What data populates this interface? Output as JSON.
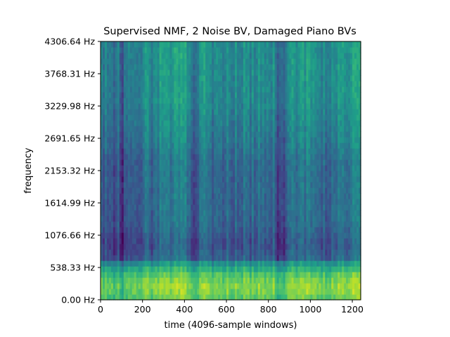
{
  "chart_data": {
    "type": "heatmap",
    "title": "Supervised NMF, 2 Noise BV, Damaged Piano BVs",
    "xlabel": "time (4096-sample windows)",
    "ylabel": "frequency",
    "xlim": [
      0,
      1240
    ],
    "ylim": [
      0,
      4306.64
    ],
    "x_ticks": [
      0,
      200,
      400,
      600,
      800,
      1000,
      1200
    ],
    "x_tick_labels": [
      "0",
      "200",
      "400",
      "600",
      "800",
      "1000",
      "1200"
    ],
    "y_ticks": [
      0,
      538.33,
      1076.66,
      1614.99,
      2153.32,
      2691.65,
      3229.98,
      3768.31,
      4306.64
    ],
    "y_tick_labels": [
      "0.00 Hz",
      "538.33 Hz",
      "1076.66 Hz",
      "1614.99 Hz",
      "2153.32 Hz",
      "2691.65 Hz",
      "3229.98 Hz",
      "3768.31 Hz",
      "4306.64 Hz"
    ],
    "colormap": "viridis",
    "grid": false,
    "value_scale": "relative intensity 0-1",
    "band_profile": [
      {
        "freq": 0,
        "intensity": 0.72
      },
      {
        "freq": 200,
        "intensity": 0.82
      },
      {
        "freq": 400,
        "intensity": 0.74
      },
      {
        "freq": 600,
        "intensity": 0.52
      },
      {
        "freq": 700,
        "intensity": 0.3
      },
      {
        "freq": 900,
        "intensity": 0.24
      },
      {
        "freq": 1300,
        "intensity": 0.32
      },
      {
        "freq": 2300,
        "intensity": 0.34
      },
      {
        "freq": 2700,
        "intensity": 0.4
      },
      {
        "freq": 3300,
        "intensity": 0.46
      },
      {
        "freq": 4306.64,
        "intensity": 0.48
      }
    ],
    "bright_time_ranges": [
      [
        280,
        420
      ],
      [
        450,
        520
      ],
      [
        900,
        1000
      ],
      [
        1130,
        1240
      ]
    ],
    "dark_time_ranges": [
      [
        0,
        20
      ],
      [
        60,
        140
      ],
      [
        440,
        470
      ],
      [
        840,
        880
      ]
    ]
  }
}
